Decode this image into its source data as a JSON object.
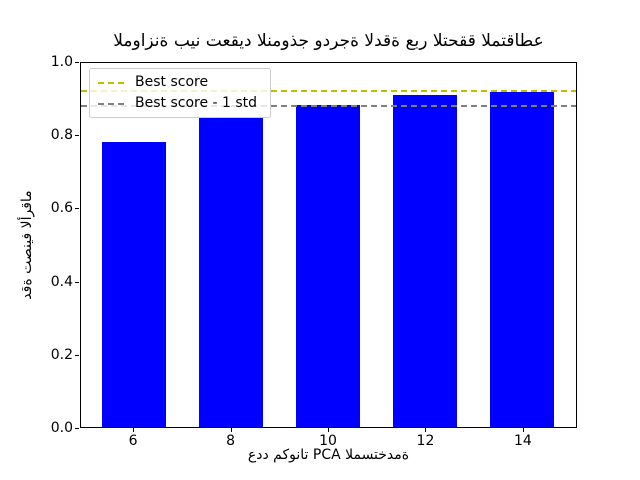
{
  "chart_data": {
    "type": "bar",
    "title": "الموازنة بين تعقيد النموذج ودرجة الدقة عبر التحقق المتقاطع",
    "xlabel": "عدد مكونات PCA المستخدمة",
    "ylabel": "دقة تصنيف الأرقام",
    "categories": [
      6,
      8,
      10,
      12,
      14
    ],
    "values": [
      0.784,
      0.853,
      0.886,
      0.912,
      0.92
    ],
    "xticks": [
      "6",
      "8",
      "10",
      "12",
      "14"
    ],
    "yticks": [
      "0.0",
      "0.2",
      "0.4",
      "0.6",
      "0.8",
      "1.0"
    ],
    "bar_color": "#0000ff",
    "ylim": [
      0.0,
      1.0
    ],
    "xlim": [
      4.91,
      15.11
    ],
    "bar_width": 1.33,
    "grid": false,
    "legend_position": "upper left",
    "hlines": [
      {
        "label": "Best score",
        "value": 0.923,
        "color": "#bfbf00",
        "style": "dashed"
      },
      {
        "label": "Best score - 1 std",
        "value": 0.882,
        "color": "#808080",
        "style": "dashed"
      }
    ]
  }
}
